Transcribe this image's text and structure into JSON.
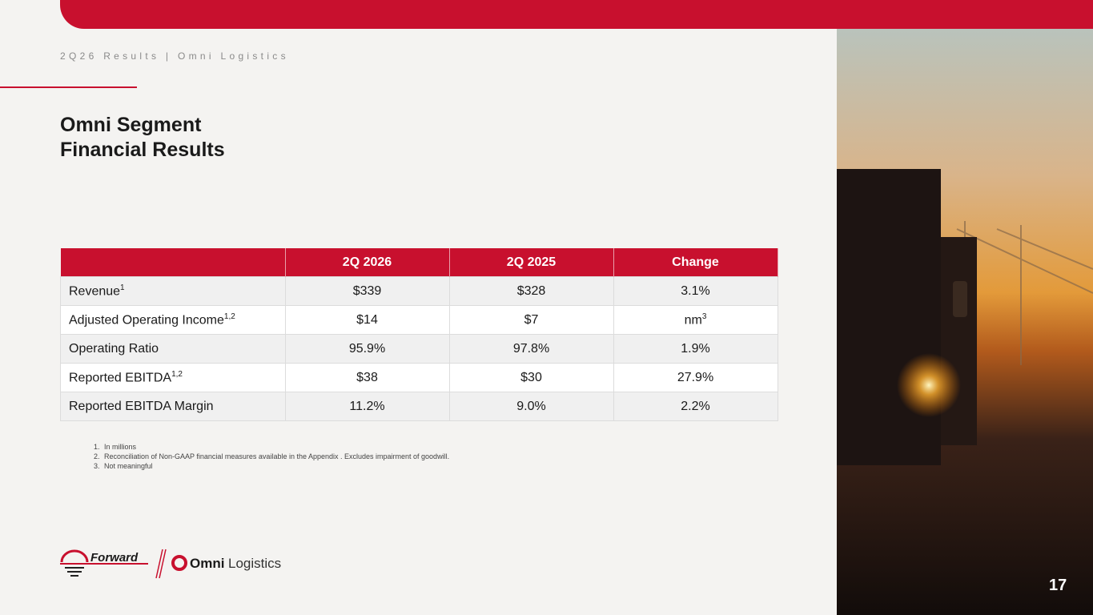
{
  "header": {
    "subtitle": "2Q26 Results | Omni Logistics",
    "title_line1": "Omni Segment",
    "title_line2": "Financial Results"
  },
  "table": {
    "columns": [
      "2Q 2026",
      "2Q 2025",
      "Change"
    ],
    "rows": [
      [
        {
          "label": "Revenue",
          "sup": "1"
        },
        "$339",
        "$328",
        "3.1%"
      ],
      [
        {
          "label": "Adjusted Operating Income",
          "sup": "1,2"
        },
        "$14",
        "$7",
        {
          "label": "nm",
          "sup": "3"
        }
      ],
      [
        {
          "label": "Operating Ratio"
        },
        "95.9%",
        "97.8%",
        "1.9%"
      ],
      [
        {
          "label": "Reported EBITDA",
          "sup": "1,2"
        },
        "$38",
        "$30",
        "27.9%"
      ],
      [
        {
          "label": "Reported EBITDA Margin"
        },
        "11.2%",
        "9.0%",
        "2.2%"
      ]
    ]
  },
  "footnotes": [
    {
      "number": "1.",
      "text": "In millions"
    },
    {
      "number": "2.",
      "text": "Reconciliation of Non-GAAP financial measures available in the Appendix . Excludes impairment of goodwill."
    },
    {
      "number": "3.",
      "text": "Not meaningful"
    }
  ],
  "logos": {
    "forward": "Forward",
    "omni": "Omni",
    "logistics": "Logistics"
  },
  "page_number": "17"
}
